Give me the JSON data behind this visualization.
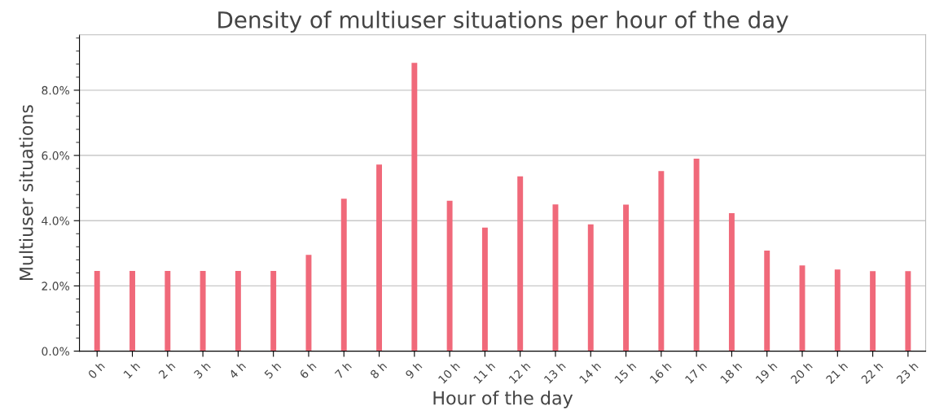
{
  "chart_data": {
    "type": "bar",
    "title": "Density of multiuser situations per hour of the day",
    "xlabel": "Hour of the day",
    "ylabel": "Multiuser situations",
    "categories": [
      "0 h",
      "1 h",
      "2 h",
      "3 h",
      "4 h",
      "5 h",
      "6 h",
      "7 h",
      "8 h",
      "9 h",
      "10 h",
      "11 h",
      "12 h",
      "13 h",
      "14 h",
      "15 h",
      "16 h",
      "17 h",
      "18 h",
      "19 h",
      "20 h",
      "21 h",
      "22 h",
      "23 h"
    ],
    "values": [
      2.46,
      2.46,
      2.46,
      2.46,
      2.46,
      2.46,
      2.95,
      4.67,
      5.72,
      8.84,
      4.61,
      3.79,
      5.36,
      4.5,
      3.89,
      4.49,
      5.52,
      5.9,
      4.23,
      3.08,
      2.63,
      2.5,
      2.45,
      2.45
    ],
    "color": "#f0697a",
    "ylim": [
      0,
      9.7
    ],
    "yticks": [
      {
        "value": 0,
        "label": "0.0%"
      },
      {
        "value": 0.4,
        "label": null
      },
      {
        "value": 0.8,
        "label": null
      },
      {
        "value": 1.2,
        "label": null
      },
      {
        "value": 1.6,
        "label": null
      },
      {
        "value": 2,
        "label": "2.0%"
      },
      {
        "value": 2.4,
        "label": null
      },
      {
        "value": 2.8,
        "label": null
      },
      {
        "value": 3.2,
        "label": null
      },
      {
        "value": 3.6,
        "label": null
      },
      {
        "value": 4,
        "label": "4.0%"
      },
      {
        "value": 4.4,
        "label": null
      },
      {
        "value": 4.8,
        "label": null
      },
      {
        "value": 5.2,
        "label": null
      },
      {
        "value": 5.6,
        "label": null
      },
      {
        "value": 6,
        "label": "6.0%"
      },
      {
        "value": 6.4,
        "label": null
      },
      {
        "value": 6.8,
        "label": null
      },
      {
        "value": 7.2,
        "label": null
      },
      {
        "value": 7.6,
        "label": null
      },
      {
        "value": 8,
        "label": "8.0%"
      },
      {
        "value": 8.4,
        "label": null
      },
      {
        "value": 8.8,
        "label": null
      },
      {
        "value": 9.2,
        "label": null
      },
      {
        "value": 9.6,
        "label": null
      }
    ],
    "grid": "y",
    "legend": false
  }
}
